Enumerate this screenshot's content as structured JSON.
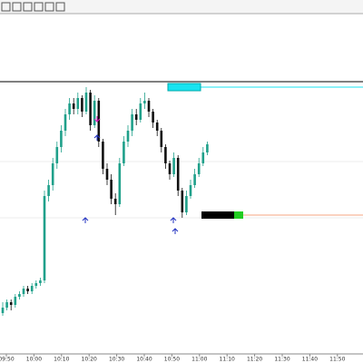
{
  "chart_data": {
    "type": "candlestick",
    "ylim": [
      0,
      100
    ],
    "x_labels": [
      "09:50",
      "10:00",
      "10:10",
      "10:20",
      "10:30",
      "10:40",
      "10:50",
      "11:00",
      "11:10",
      "11:20",
      "11:30",
      "11:40",
      "11:50"
    ],
    "candles": [
      [
        15,
        19,
        14,
        17
      ],
      [
        17,
        20,
        16,
        19
      ],
      [
        19,
        20,
        16,
        18
      ],
      [
        18,
        22,
        17,
        21
      ],
      [
        21,
        23,
        20,
        22
      ],
      [
        22,
        25,
        21,
        24
      ],
      [
        24,
        25,
        22,
        23
      ],
      [
        23,
        26,
        22,
        25
      ],
      [
        25,
        27,
        24,
        26
      ],
      [
        26,
        28,
        25,
        27
      ],
      [
        27,
        60,
        26,
        58
      ],
      [
        58,
        64,
        56,
        62
      ],
      [
        62,
        72,
        60,
        70
      ],
      [
        70,
        78,
        68,
        76
      ],
      [
        76,
        84,
        74,
        82
      ],
      [
        82,
        90,
        80,
        88
      ],
      [
        88,
        94,
        86,
        92
      ],
      [
        92,
        94,
        88,
        90
      ],
      [
        90,
        96,
        88,
        94
      ],
      [
        94,
        95,
        87,
        89
      ],
      [
        89,
        98,
        88,
        96
      ],
      [
        96,
        97,
        82,
        84
      ],
      [
        84,
        95,
        83,
        93
      ],
      [
        93,
        94,
        76,
        78
      ],
      [
        78,
        79,
        66,
        68
      ],
      [
        68,
        70,
        62,
        64
      ],
      [
        64,
        66,
        55,
        57
      ],
      [
        57,
        59,
        51,
        55
      ],
      [
        55,
        72,
        54,
        70
      ],
      [
        70,
        80,
        69,
        78
      ],
      [
        78,
        84,
        76,
        82
      ],
      [
        82,
        90,
        80,
        88
      ],
      [
        88,
        90,
        84,
        86
      ],
      [
        86,
        94,
        85,
        92
      ],
      [
        92,
        96,
        90,
        93
      ],
      [
        93,
        94,
        87,
        89
      ],
      [
        89,
        90,
        83,
        85
      ],
      [
        85,
        86,
        80,
        82
      ],
      [
        82,
        83,
        74,
        76
      ],
      [
        76,
        77,
        68,
        70
      ],
      [
        70,
        71,
        64,
        66
      ],
      [
        66,
        74,
        65,
        72
      ],
      [
        72,
        73,
        58,
        60
      ],
      [
        60,
        61,
        50,
        52
      ],
      [
        52,
        60,
        51,
        58
      ],
      [
        58,
        64,
        57,
        62
      ],
      [
        62,
        68,
        61,
        66
      ],
      [
        66,
        72,
        65,
        70
      ],
      [
        70,
        76,
        69,
        74
      ],
      [
        74,
        78,
        73,
        77
      ]
    ],
    "up_color": "#1fa08a",
    "down_color": "#111111",
    "levels": [
      {
        "value": 98,
        "color": "#19e3f0"
      },
      {
        "value": 51,
        "color": "#f4a582"
      }
    ]
  }
}
